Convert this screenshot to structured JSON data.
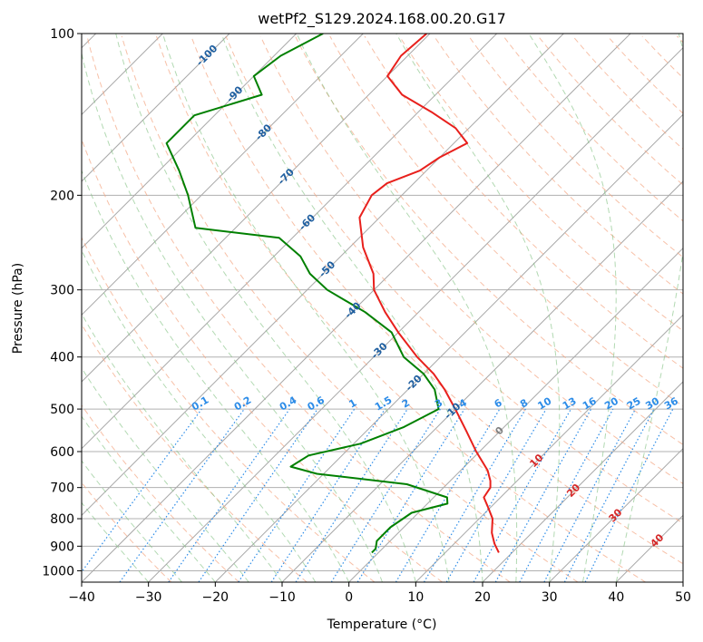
{
  "chart_data": {
    "type": "line",
    "diagram": "skew-T log-p",
    "title": "wetPf2_S129.2024.168.00.20.G17",
    "xlabel": "Temperature (°C)",
    "ylabel": "Pressure (hPa)",
    "xlim": [
      -40,
      50
    ],
    "ylim": [
      1050,
      100
    ],
    "yscale": "log",
    "grid": true,
    "x_ticks": [
      -40,
      -30,
      -20,
      -10,
      0,
      10,
      20,
      30,
      40,
      50
    ],
    "y_ticks": [
      100,
      200,
      300,
      400,
      500,
      600,
      700,
      800,
      900,
      1000
    ],
    "isotherm_labels": [
      {
        "text": "-100",
        "t": -100,
        "p": 110
      },
      {
        "text": "-90",
        "t": -90,
        "p": 130
      },
      {
        "text": "-80",
        "t": -80,
        "p": 153
      },
      {
        "text": "-70",
        "t": -70,
        "p": 185
      },
      {
        "text": "-60",
        "t": -60,
        "p": 225
      },
      {
        "text": "-50",
        "t": -50,
        "p": 275
      },
      {
        "text": "-40",
        "t": -40,
        "p": 328
      },
      {
        "text": "-30",
        "t": -30,
        "p": 390
      },
      {
        "text": "-20",
        "t": -20,
        "p": 448
      },
      {
        "text": "-10",
        "t": -10,
        "p": 505
      },
      {
        "text": "0",
        "t": 0,
        "p": 550
      },
      {
        "text": "10",
        "t": 10,
        "p": 625
      },
      {
        "text": "20",
        "t": 20,
        "p": 710
      },
      {
        "text": "30",
        "t": 30,
        "p": 790
      },
      {
        "text": "40",
        "t": 40,
        "p": 880
      }
    ],
    "mixing_ratio_labels": [
      "0.1",
      "0.2",
      "0.4",
      "0.6",
      "1",
      "1.5",
      "2",
      "3",
      "4",
      "6",
      "8",
      "10",
      "13",
      "16",
      "20",
      "25",
      "30",
      "36"
    ],
    "mixing_ratio_values": [
      0.1,
      0.2,
      0.4,
      0.6,
      1,
      1.5,
      2,
      3,
      4,
      6,
      8,
      10,
      13,
      16,
      20,
      25,
      30,
      36
    ],
    "series": [
      {
        "color": "#e8201c",
        "points": [
          {
            "p": 100,
            "t": -70.5
          },
          {
            "p": 110,
            "t": -71
          },
          {
            "p": 120,
            "t": -70
          },
          {
            "p": 130,
            "t": -65
          },
          {
            "p": 140,
            "t": -58
          },
          {
            "p": 150,
            "t": -52
          },
          {
            "p": 160,
            "t": -48
          },
          {
            "p": 170,
            "t": -50
          },
          {
            "p": 180,
            "t": -51
          },
          {
            "p": 190,
            "t": -54
          },
          {
            "p": 200,
            "t": -54.5
          },
          {
            "p": 220,
            "t": -53
          },
          {
            "p": 250,
            "t": -48
          },
          {
            "p": 280,
            "t": -42.5
          },
          {
            "p": 300,
            "t": -40
          },
          {
            "p": 330,
            "t": -35
          },
          {
            "p": 360,
            "t": -30
          },
          {
            "p": 400,
            "t": -23.5
          },
          {
            "p": 430,
            "t": -18.5
          },
          {
            "p": 460,
            "t": -14.5
          },
          {
            "p": 500,
            "t": -10
          },
          {
            "p": 550,
            "t": -5
          },
          {
            "p": 600,
            "t": -0.5
          },
          {
            "p": 650,
            "t": 4
          },
          {
            "p": 680,
            "t": 6
          },
          {
            "p": 700,
            "t": 7
          },
          {
            "p": 730,
            "t": 7.5
          },
          {
            "p": 760,
            "t": 9.5
          },
          {
            "p": 800,
            "t": 12
          },
          {
            "p": 850,
            "t": 14
          },
          {
            "p": 890,
            "t": 16
          },
          {
            "p": 925,
            "t": 18
          }
        ]
      },
      {
        "color": "#008000",
        "points": [
          {
            "p": 100,
            "t": -86
          },
          {
            "p": 110,
            "t": -89
          },
          {
            "p": 120,
            "t": -90
          },
          {
            "p": 130,
            "t": -86
          },
          {
            "p": 142,
            "t": -93
          },
          {
            "p": 160,
            "t": -93
          },
          {
            "p": 180,
            "t": -87
          },
          {
            "p": 200,
            "t": -82
          },
          {
            "p": 230,
            "t": -76
          },
          {
            "p": 240,
            "t": -62
          },
          {
            "p": 260,
            "t": -56
          },
          {
            "p": 280,
            "t": -52
          },
          {
            "p": 300,
            "t": -47
          },
          {
            "p": 330,
            "t": -38
          },
          {
            "p": 360,
            "t": -31
          },
          {
            "p": 400,
            "t": -25.5
          },
          {
            "p": 430,
            "t": -20
          },
          {
            "p": 460,
            "t": -16
          },
          {
            "p": 500,
            "t": -12.5
          },
          {
            "p": 540,
            "t": -15
          },
          {
            "p": 580,
            "t": -19
          },
          {
            "p": 610,
            "t": -25
          },
          {
            "p": 640,
            "t": -26
          },
          {
            "p": 660,
            "t": -21
          },
          {
            "p": 690,
            "t": -6
          },
          {
            "p": 730,
            "t": 2
          },
          {
            "p": 750,
            "t": 3
          },
          {
            "p": 780,
            "t": -1
          },
          {
            "p": 830,
            "t": -2
          },
          {
            "p": 880,
            "t": -2
          },
          {
            "p": 910,
            "t": -1
          },
          {
            "p": 925,
            "t": -1
          }
        ]
      }
    ]
  }
}
